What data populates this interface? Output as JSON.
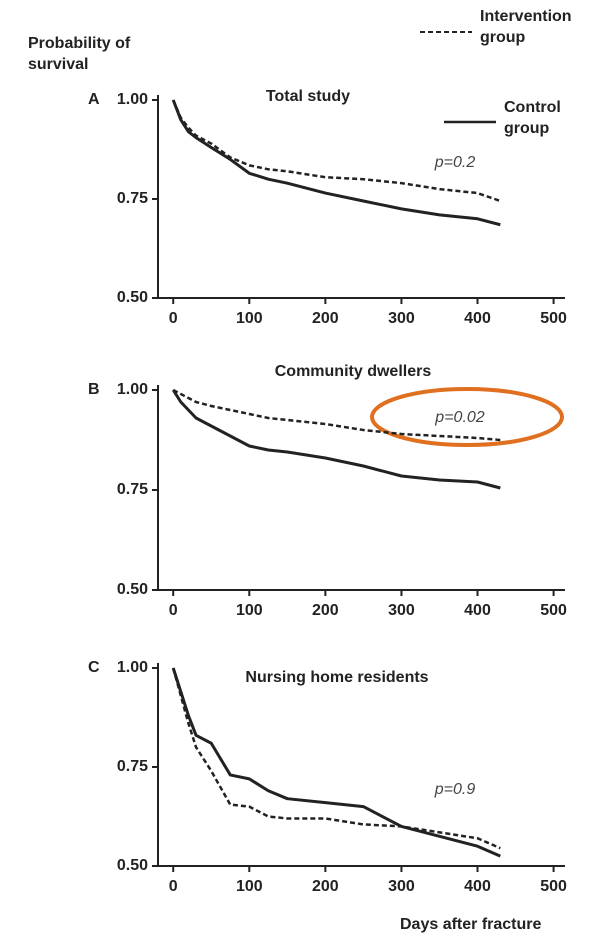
{
  "chart_data": [
    {
      "type": "line",
      "panel": "A",
      "title": "Total study",
      "annotation": "p=0.2",
      "y_label": "Probability of survival",
      "x": [
        0,
        10,
        20,
        30,
        50,
        75,
        100,
        125,
        150,
        200,
        250,
        300,
        350,
        400,
        430
      ],
      "series": [
        {
          "name": "Intervention group",
          "line_style": "dashed",
          "color": "#222222",
          "values": [
            1,
            0.955,
            0.93,
            0.91,
            0.89,
            0.855,
            0.835,
            0.825,
            0.82,
            0.805,
            0.8,
            0.79,
            0.775,
            0.765,
            0.745
          ]
        },
        {
          "name": "Control group",
          "line_style": "solid",
          "color": "#222222",
          "values": [
            1,
            0.95,
            0.92,
            0.905,
            0.88,
            0.85,
            0.815,
            0.8,
            0.79,
            0.765,
            0.745,
            0.725,
            0.71,
            0.7,
            0.685
          ]
        }
      ],
      "xlim": [
        -20,
        515
      ],
      "xticks": [
        0,
        100,
        200,
        300,
        400,
        500
      ],
      "ylim": [
        0.5,
        1
      ],
      "yticks": [
        {
          "value": 0.5,
          "label": "0.50"
        },
        0.75,
        {
          "value": 1,
          "label": "1.00"
        }
      ]
    },
    {
      "type": "line",
      "panel": "B",
      "title": "Community dwellers",
      "annotation": "p=0.02",
      "x": [
        0,
        10,
        20,
        30,
        50,
        75,
        100,
        125,
        150,
        200,
        250,
        300,
        350,
        400,
        430
      ],
      "series": [
        {
          "line_style": "dashed",
          "color": "#222222",
          "values": [
            1,
            0.99,
            0.98,
            0.97,
            0.96,
            0.95,
            0.94,
            0.93,
            0.925,
            0.915,
            0.9,
            0.89,
            0.885,
            0.88,
            0.875
          ]
        },
        {
          "line_style": "solid",
          "color": "#222222",
          "values": [
            1,
            0.97,
            0.95,
            0.93,
            0.91,
            0.885,
            0.86,
            0.85,
            0.845,
            0.83,
            0.81,
            0.785,
            0.775,
            0.77,
            0.755
          ]
        }
      ],
      "xlim": [
        -20,
        515
      ],
      "xticks": [
        0,
        100,
        200,
        300,
        400,
        500
      ],
      "ylim": [
        0.5,
        1
      ],
      "yticks": [
        {
          "value": 0.5,
          "label": "0.50"
        },
        0.75,
        {
          "value": 1,
          "label": "1.00"
        }
      ]
    },
    {
      "type": "line",
      "panel": "C",
      "title": "Nursing home residents",
      "annotation": "p=0.9",
      "x_label": "Days after fracture",
      "x": [
        0,
        10,
        20,
        30,
        50,
        75,
        100,
        125,
        150,
        200,
        250,
        300,
        350,
        400,
        430
      ],
      "series": [
        {
          "line_style": "dashed",
          "color": "#222222",
          "values": [
            1,
            0.93,
            0.86,
            0.8,
            0.74,
            0.655,
            0.65,
            0.625,
            0.62,
            0.62,
            0.605,
            0.6,
            0.585,
            0.57,
            0.545
          ]
        },
        {
          "line_style": "solid",
          "color": "#222222",
          "values": [
            1,
            0.94,
            0.88,
            0.83,
            0.81,
            0.73,
            0.72,
            0.69,
            0.67,
            0.66,
            0.65,
            0.6,
            0.575,
            0.55,
            0.525
          ]
        }
      ],
      "xlim": [
        -20,
        515
      ],
      "xticks": [
        0,
        100,
        200,
        300,
        400,
        500
      ],
      "ylim": [
        0.5,
        1
      ],
      "yticks": [
        {
          "value": 0.5,
          "label": "0.50"
        },
        0.75,
        {
          "value": 1,
          "label": "1.00"
        }
      ]
    }
  ]
}
